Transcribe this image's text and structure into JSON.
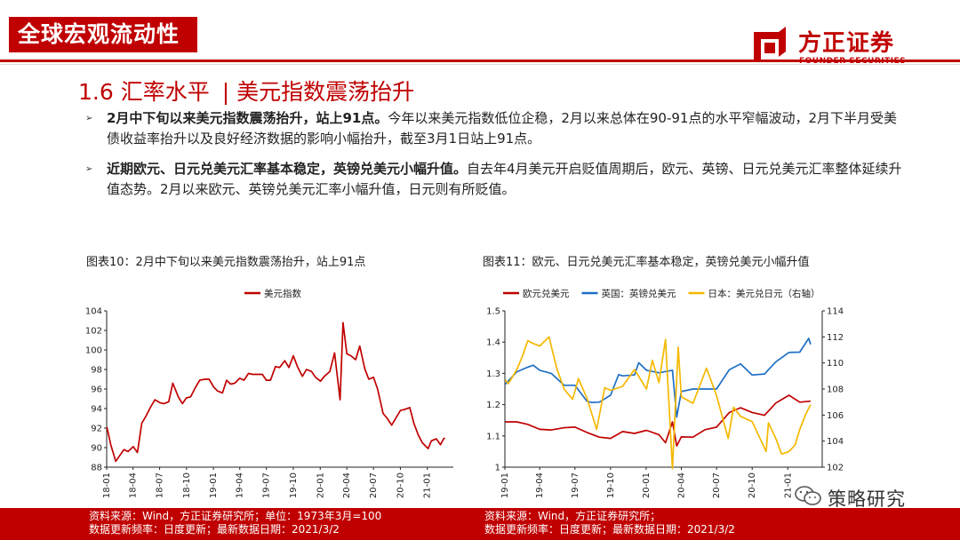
{
  "header": {
    "tag": "全球宏观流动性",
    "company_cn": "方正证券",
    "company_en": "FOUNDER SECURITIES"
  },
  "section": {
    "number": "1.6 汇率水平",
    "separator": "|",
    "subtitle": "美元指数震荡抬升"
  },
  "bullets": [
    {
      "bold": "2月中下旬以来美元指数震荡抬升，站上91点。",
      "text": "今年以来美元指数低位企稳，2月以来总体在90-91点的水平窄幅波动，2月下半月受美债收益率抬升以及良好经济数据的影响小幅抬升，截至3月1日站上91点。"
    },
    {
      "bold": "近期欧元、日元兑美元汇率基本稳定，英镑兑美元小幅升值。",
      "text": "自去年4月美元开启贬值周期后，欧元、英镑、日元兑美元汇率整体延续升值态势。2月以来欧元、英镑兑美元汇率小幅升值，日元则有所贬值。"
    }
  ],
  "charts": {
    "left": {
      "title": "图表10：2月中下旬以来美元指数震荡抬升，站上91点",
      "source_line1": "资料来源：Wind，方正证券研究所；单位：1973年3月=100",
      "source_line2": "数据更新频率：日度更新；最新数据日期：2021/3/2"
    },
    "right": {
      "title": "图表11：欧元、日元兑美元汇率基本稳定，英镑兑美元小幅升值",
      "source_line1": "资料来源：Wind，方正证券研究所；",
      "source_line2": "数据更新频率：日度更新；最新数据日期：2021/3/2"
    }
  },
  "watermark": "策略研究",
  "colors": {
    "brand": "#c00000",
    "eur": "#c00000",
    "gbp": "#1f6fc5",
    "jpy": "#f5b800"
  },
  "chart_data": [
    {
      "type": "line",
      "series": [
        {
          "name": "美元指数",
          "points": [
            [
              "2018-01-02",
              92.1
            ],
            [
              "2018-01-15",
              90.3
            ],
            [
              "2018-02-01",
              88.6
            ],
            [
              "2018-02-15",
              89.2
            ],
            [
              "2018-03-01",
              89.8
            ],
            [
              "2018-03-15",
              89.6
            ],
            [
              "2018-04-02",
              90.1
            ],
            [
              "2018-04-16",
              89.5
            ],
            [
              "2018-05-01",
              92.5
            ],
            [
              "2018-05-15",
              93.2
            ],
            [
              "2018-06-01",
              94.2
            ],
            [
              "2018-06-15",
              94.9
            ],
            [
              "2018-07-02",
              94.6
            ],
            [
              "2018-07-16",
              94.5
            ],
            [
              "2018-08-01",
              94.7
            ],
            [
              "2018-08-15",
              96.6
            ],
            [
              "2018-09-03",
              95.2
            ],
            [
              "2018-09-17",
              94.5
            ],
            [
              "2018-10-01",
              95.1
            ],
            [
              "2018-10-15",
              95.2
            ],
            [
              "2018-11-01",
              96.2
            ],
            [
              "2018-11-15",
              96.9
            ],
            [
              "2018-12-03",
              97.0
            ],
            [
              "2018-12-17",
              97.0
            ],
            [
              "2019-01-02",
              96.2
            ],
            [
              "2019-01-15",
              95.8
            ],
            [
              "2019-02-01",
              95.6
            ],
            [
              "2019-02-15",
              96.9
            ],
            [
              "2019-03-01",
              96.5
            ],
            [
              "2019-03-15",
              96.6
            ],
            [
              "2019-04-01",
              97.1
            ],
            [
              "2019-04-15",
              96.9
            ],
            [
              "2019-05-01",
              97.6
            ],
            [
              "2019-05-15",
              97.5
            ],
            [
              "2019-06-03",
              97.5
            ],
            [
              "2019-06-17",
              97.5
            ],
            [
              "2019-07-01",
              96.9
            ],
            [
              "2019-07-15",
              96.9
            ],
            [
              "2019-08-01",
              98.3
            ],
            [
              "2019-08-15",
              98.2
            ],
            [
              "2019-09-02",
              98.9
            ],
            [
              "2019-09-16",
              98.2
            ],
            [
              "2019-10-01",
              99.4
            ],
            [
              "2019-10-15",
              98.3
            ],
            [
              "2019-11-01",
              97.3
            ],
            [
              "2019-11-15",
              98.0
            ],
            [
              "2019-12-02",
              97.8
            ],
            [
              "2019-12-16",
              97.2
            ],
            [
              "2020-01-02",
              96.8
            ],
            [
              "2020-01-15",
              97.3
            ],
            [
              "2020-02-03",
              97.8
            ],
            [
              "2020-02-19",
              99.7
            ],
            [
              "2020-03-09",
              94.9
            ],
            [
              "2020-03-19",
              102.8
            ],
            [
              "2020-04-01",
              99.6
            ],
            [
              "2020-04-15",
              99.4
            ],
            [
              "2020-05-01",
              99.0
            ],
            [
              "2020-05-15",
              100.4
            ],
            [
              "2020-06-01",
              98.1
            ],
            [
              "2020-06-15",
              97.0
            ],
            [
              "2020-07-01",
              97.2
            ],
            [
              "2020-07-15",
              96.0
            ],
            [
              "2020-08-03",
              93.5
            ],
            [
              "2020-08-17",
              93.0
            ],
            [
              "2020-09-01",
              92.3
            ],
            [
              "2020-09-15",
              93.0
            ],
            [
              "2020-10-01",
              93.8
            ],
            [
              "2020-10-15",
              93.9
            ],
            [
              "2020-11-02",
              94.1
            ],
            [
              "2020-11-16",
              92.5
            ],
            [
              "2020-12-01",
              91.3
            ],
            [
              "2020-12-15",
              90.5
            ],
            [
              "2021-01-04",
              89.9
            ],
            [
              "2021-01-15",
              90.7
            ],
            [
              "2021-02-01",
              90.9
            ],
            [
              "2021-02-15",
              90.3
            ],
            [
              "2021-02-26",
              90.9
            ],
            [
              "2021-03-02",
              91.0
            ]
          ]
        }
      ],
      "xticks": [
        "18-01",
        "18-04",
        "18-07",
        "18-10",
        "19-01",
        "19-04",
        "19-07",
        "19-10",
        "20-01",
        "20-04",
        "20-07",
        "20-10",
        "21-01"
      ],
      "yticks": [
        88,
        90,
        92,
        94,
        96,
        98,
        100,
        102,
        104
      ],
      "ylim": [
        88,
        104
      ],
      "xlim": [
        "2018-01-01",
        "2021-03-31"
      ],
      "legend": "top-center"
    },
    {
      "type": "line",
      "series": [
        {
          "name": "欧元兑美元",
          "axis": "left",
          "points": [
            [
              "2019-01-02",
              1.145
            ],
            [
              "2019-02-01",
              1.145
            ],
            [
              "2019-03-01",
              1.137
            ],
            [
              "2019-04-01",
              1.121
            ],
            [
              "2019-05-01",
              1.119
            ],
            [
              "2019-06-03",
              1.126
            ],
            [
              "2019-07-01",
              1.128
            ],
            [
              "2019-08-01",
              1.111
            ],
            [
              "2019-09-02",
              1.096
            ],
            [
              "2019-10-01",
              1.092
            ],
            [
              "2019-11-01",
              1.114
            ],
            [
              "2019-12-02",
              1.108
            ],
            [
              "2020-01-02",
              1.118
            ],
            [
              "2020-02-03",
              1.104
            ],
            [
              "2020-02-20",
              1.078
            ],
            [
              "2020-03-09",
              1.145
            ],
            [
              "2020-03-20",
              1.068
            ],
            [
              "2020-04-01",
              1.097
            ],
            [
              "2020-05-01",
              1.096
            ],
            [
              "2020-06-01",
              1.12
            ],
            [
              "2020-07-01",
              1.128
            ],
            [
              "2020-08-03",
              1.175
            ],
            [
              "2020-09-01",
              1.19
            ],
            [
              "2020-10-01",
              1.175
            ],
            [
              "2020-11-02",
              1.166
            ],
            [
              "2020-12-01",
              1.205
            ],
            [
              "2021-01-04",
              1.23
            ],
            [
              "2021-02-01",
              1.208
            ],
            [
              "2021-03-01",
              1.211
            ]
          ]
        },
        {
          "name": "英国：英镑兑美元",
          "axis": "left",
          "points": [
            [
              "2019-01-02",
              1.265
            ],
            [
              "2019-02-01",
              1.305
            ],
            [
              "2019-03-01",
              1.32
            ],
            [
              "2019-03-15",
              1.326
            ],
            [
              "2019-04-01",
              1.31
            ],
            [
              "2019-05-01",
              1.3
            ],
            [
              "2019-06-03",
              1.262
            ],
            [
              "2019-07-01",
              1.262
            ],
            [
              "2019-08-01",
              1.211
            ],
            [
              "2019-08-12",
              1.207
            ],
            [
              "2019-09-02",
              1.208
            ],
            [
              "2019-10-01",
              1.23
            ],
            [
              "2019-10-22",
              1.296
            ],
            [
              "2019-11-01",
              1.292
            ],
            [
              "2019-12-02",
              1.295
            ],
            [
              "2019-12-13",
              1.334
            ],
            [
              "2020-01-02",
              1.31
            ],
            [
              "2020-02-03",
              1.302
            ],
            [
              "2020-03-09",
              1.31
            ],
            [
              "2020-03-20",
              1.16
            ],
            [
              "2020-04-01",
              1.242
            ],
            [
              "2020-05-01",
              1.25
            ],
            [
              "2020-06-01",
              1.25
            ],
            [
              "2020-07-01",
              1.25
            ],
            [
              "2020-08-03",
              1.312
            ],
            [
              "2020-09-01",
              1.33
            ],
            [
              "2020-10-01",
              1.295
            ],
            [
              "2020-11-02",
              1.298
            ],
            [
              "2020-12-01",
              1.337
            ],
            [
              "2021-01-04",
              1.367
            ],
            [
              "2021-02-01",
              1.368
            ],
            [
              "2021-02-24",
              1.412
            ],
            [
              "2021-03-01",
              1.393
            ]
          ]
        },
        {
          "name": "日本：美元兑日元（右轴）",
          "axis": "right",
          "points": [
            [
              "2019-01-02",
              108.7
            ],
            [
              "2019-01-10",
              108.4
            ],
            [
              "2019-02-01",
              109.5
            ],
            [
              "2019-02-15",
              110.5
            ],
            [
              "2019-03-01",
              111.7
            ],
            [
              "2019-03-15",
              111.5
            ],
            [
              "2019-04-01",
              111.3
            ],
            [
              "2019-04-25",
              112.0
            ],
            [
              "2019-05-15",
              109.6
            ],
            [
              "2019-06-03",
              108.0
            ],
            [
              "2019-06-25",
              107.2
            ],
            [
              "2019-07-10",
              108.8
            ],
            [
              "2019-08-01",
              107.3
            ],
            [
              "2019-08-26",
              104.9
            ],
            [
              "2019-09-16",
              108.1
            ],
            [
              "2019-10-01",
              107.9
            ],
            [
              "2019-11-01",
              108.2
            ],
            [
              "2019-12-02",
              109.5
            ],
            [
              "2020-01-02",
              108.0
            ],
            [
              "2020-01-17",
              110.2
            ],
            [
              "2020-02-03",
              108.5
            ],
            [
              "2020-02-20",
              111.8
            ],
            [
              "2020-03-09",
              101.9
            ],
            [
              "2020-03-24",
              111.2
            ],
            [
              "2020-04-01",
              107.4
            ],
            [
              "2020-05-01",
              106.9
            ],
            [
              "2020-06-05",
              109.6
            ],
            [
              "2020-07-01",
              107.5
            ],
            [
              "2020-07-31",
              104.2
            ],
            [
              "2020-08-14",
              106.6
            ],
            [
              "2020-09-01",
              105.9
            ],
            [
              "2020-10-01",
              105.5
            ],
            [
              "2020-11-06",
              103.2
            ],
            [
              "2020-11-12",
              105.4
            ],
            [
              "2020-12-01",
              104.2
            ],
            [
              "2020-12-16",
              103.0
            ],
            [
              "2021-01-04",
              103.2
            ],
            [
              "2021-01-20",
              103.7
            ],
            [
              "2021-02-01",
              104.9
            ],
            [
              "2021-02-17",
              106.1
            ],
            [
              "2021-03-01",
              106.8
            ]
          ]
        }
      ],
      "xticks": [
        "19-01",
        "19-04",
        "19-07",
        "19-10",
        "20-01",
        "20-04",
        "20-07",
        "20-10",
        "21-01"
      ],
      "yticks_left": [
        1,
        1.1,
        1.2,
        1.3,
        1.4,
        1.5
      ],
      "yticks_right": [
        102,
        104,
        106,
        108,
        110,
        112,
        114
      ],
      "ylim_left": [
        1,
        1.5
      ],
      "ylim_right": [
        102,
        114
      ],
      "xlim": [
        "2019-01-01",
        "2021-03-31"
      ],
      "legend": "top"
    }
  ]
}
